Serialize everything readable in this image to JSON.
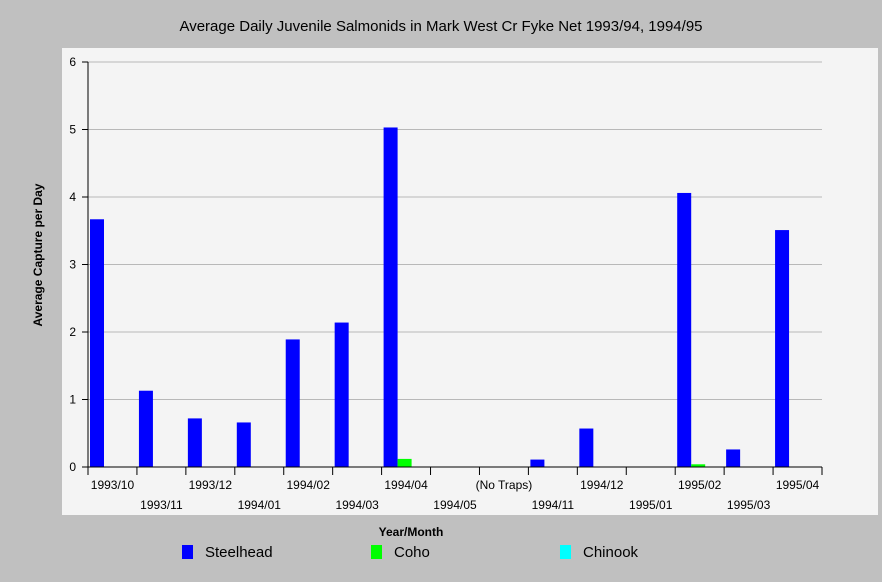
{
  "chart_data": {
    "type": "bar",
    "title": "Average Daily Juvenile Salmonids in Mark West Cr Fyke Net 1993/94, 1994/95",
    "xlabel": "Year/Month",
    "ylabel": "Average Capture per Day",
    "ylim": [
      0,
      6
    ],
    "yticks": [
      0,
      1,
      2,
      3,
      4,
      5,
      6
    ],
    "grid": true,
    "legend_position": "bottom",
    "categories": [
      "1993/10",
      "1993/11",
      "1993/12",
      "1994/01",
      "1994/02",
      "1994/03",
      "1994/04",
      "1994/05",
      "(No Traps)",
      "1994/11",
      "1994/12",
      "1995/01",
      "1995/02",
      "1995/03",
      "1995/04"
    ],
    "series": [
      {
        "name": "Steelhead",
        "color": "#0000ff",
        "values": [
          3.67,
          1.13,
          0.72,
          0.66,
          1.89,
          2.14,
          5.03,
          0,
          0,
          0.11,
          0.57,
          0,
          4.06,
          0.26,
          3.51
        ]
      },
      {
        "name": "Coho",
        "color": "#00ff00",
        "values": [
          0,
          0,
          0,
          0,
          0,
          0,
          0.12,
          0,
          0,
          0,
          0,
          0,
          0.04,
          0,
          0
        ]
      },
      {
        "name": "Chinook",
        "color": "#00ffff",
        "values": [
          0,
          0,
          0,
          0,
          0,
          0,
          0,
          0,
          0,
          0,
          0,
          0,
          0,
          0,
          0
        ]
      }
    ]
  }
}
